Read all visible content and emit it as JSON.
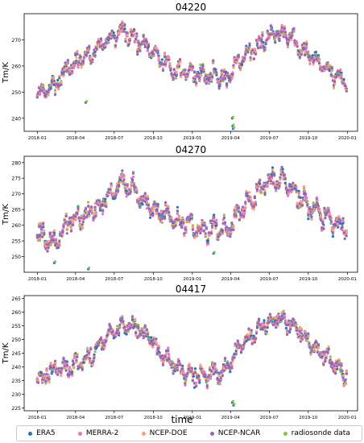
{
  "colors": {
    "ERA5": "#1f77b4",
    "MERRA-2": "#e377c2",
    "NCEP-DOE": "#ff9f7f",
    "NCEP-NCAR": "#9467bd",
    "radiosonde data": "#8bc34a"
  },
  "xlabel": "time",
  "legend": [
    "ERA5",
    "MERRA-2",
    "NCEP-DOE",
    "NCEP-NCAR",
    "radiosonde data"
  ],
  "chart_data": [
    {
      "type": "scatter",
      "title": "04220",
      "ylabel": "Tm/K",
      "xlabel": "",
      "xlim": [
        "2017-12-01",
        "2020-01-25"
      ],
      "ylim": [
        235,
        280
      ],
      "yticks": [
        240,
        250,
        260,
        270
      ],
      "xticks": [
        "2018-01",
        "2018-04",
        "2018-07",
        "2018-10",
        "2019-01",
        "2019-04",
        "2019-07",
        "2019-10",
        "2020-01"
      ],
      "trend": [
        [
          "2018-01-01",
          249
        ],
        [
          "2018-02-10",
          252
        ],
        [
          "2018-03-15",
          260
        ],
        [
          "2018-04-15",
          262
        ],
        [
          "2018-05-15",
          266
        ],
        [
          "2018-06-20",
          271
        ],
        [
          "2018-07-25",
          274
        ],
        [
          "2018-08-25",
          270
        ],
        [
          "2018-09-25",
          266
        ],
        [
          "2018-10-25",
          261
        ],
        [
          "2018-11-25",
          258
        ],
        [
          "2018-12-25",
          258
        ],
        [
          "2019-01-25",
          256
        ],
        [
          "2019-02-25",
          257
        ],
        [
          "2019-03-25",
          254
        ],
        [
          "2019-04-20",
          261
        ],
        [
          "2019-05-20",
          266
        ],
        [
          "2019-06-20",
          270
        ],
        [
          "2019-07-20",
          273
        ],
        [
          "2019-08-20",
          271
        ],
        [
          "2019-09-20",
          266
        ],
        [
          "2019-10-20",
          262
        ],
        [
          "2019-11-20",
          258
        ],
        [
          "2019-12-25",
          255
        ]
      ],
      "amp": 4,
      "outliers": [
        [
          "2018-04-25",
          246
        ],
        [
          "2019-04-05",
          240
        ],
        [
          "2019-04-06",
          237
        ],
        [
          "2019-04-07",
          236
        ]
      ]
    },
    {
      "type": "scatter",
      "title": "04270",
      "ylabel": "Tm/K",
      "xlabel": "",
      "xlim": [
        "2017-12-01",
        "2020-01-25"
      ],
      "ylim": [
        245,
        282
      ],
      "yticks": [
        250,
        255,
        260,
        265,
        270,
        275,
        280
      ],
      "xticks": [
        "2018-01",
        "2018-04",
        "2018-07",
        "2018-10",
        "2019-01",
        "2019-04",
        "2019-07",
        "2019-10",
        "2020-01"
      ],
      "trend": [
        [
          "2018-01-01",
          257
        ],
        [
          "2018-02-10",
          254
        ],
        [
          "2018-03-15",
          262
        ],
        [
          "2018-04-15",
          262
        ],
        [
          "2018-05-15",
          264
        ],
        [
          "2018-06-20",
          270
        ],
        [
          "2018-07-25",
          275
        ],
        [
          "2018-08-25",
          270
        ],
        [
          "2018-09-25",
          266
        ],
        [
          "2018-10-25",
          264
        ],
        [
          "2018-11-25",
          261
        ],
        [
          "2018-12-25",
          260
        ],
        [
          "2019-01-25",
          259
        ],
        [
          "2019-02-25",
          259
        ],
        [
          "2019-03-25",
          258
        ],
        [
          "2019-04-20",
          264
        ],
        [
          "2019-05-20",
          268
        ],
        [
          "2019-06-20",
          273
        ],
        [
          "2019-07-20",
          275
        ],
        [
          "2019-08-20",
          272
        ],
        [
          "2019-09-20",
          267
        ],
        [
          "2019-10-20",
          264
        ],
        [
          "2019-11-20",
          262
        ],
        [
          "2019-12-25",
          259
        ]
      ],
      "amp": 4,
      "outliers": [
        [
          "2018-05-01",
          246
        ],
        [
          "2018-02-10",
          248
        ],
        [
          "2019-02-20",
          251
        ]
      ]
    },
    {
      "type": "scatter",
      "title": "04417",
      "ylabel": "Tm/K",
      "xlabel": "",
      "xlim": [
        "2017-12-01",
        "2020-01-25"
      ],
      "ylim": [
        224,
        266
      ],
      "yticks": [
        225,
        230,
        235,
        240,
        245,
        250,
        255,
        260,
        265
      ],
      "xticks": [
        "2018-01",
        "2018-04",
        "2018-07",
        "2018-10",
        "2019-01",
        "2019-04",
        "2019-07",
        "2019-10",
        "2020-01"
      ],
      "trend": [
        [
          "2018-01-01",
          236
        ],
        [
          "2018-02-10",
          239
        ],
        [
          "2018-03-15",
          240
        ],
        [
          "2018-04-15",
          242
        ],
        [
          "2018-05-15",
          246
        ],
        [
          "2018-06-20",
          252
        ],
        [
          "2018-07-25",
          255
        ],
        [
          "2018-08-25",
          254
        ],
        [
          "2018-09-25",
          250
        ],
        [
          "2018-10-25",
          244
        ],
        [
          "2018-11-25",
          240
        ],
        [
          "2018-12-25",
          238
        ],
        [
          "2019-01-25",
          236
        ],
        [
          "2019-02-25",
          238
        ],
        [
          "2019-03-25",
          240
        ],
        [
          "2019-04-20",
          247
        ],
        [
          "2019-05-20",
          251
        ],
        [
          "2019-06-20",
          255
        ],
        [
          "2019-07-20",
          258
        ],
        [
          "2019-08-20",
          256
        ],
        [
          "2019-09-20",
          251
        ],
        [
          "2019-10-20",
          246
        ],
        [
          "2019-11-20",
          242
        ],
        [
          "2019-12-25",
          238
        ]
      ],
      "amp": 4,
      "outliers": [
        [
          "2019-04-05",
          227
        ],
        [
          "2019-04-08",
          226
        ]
      ]
    }
  ]
}
